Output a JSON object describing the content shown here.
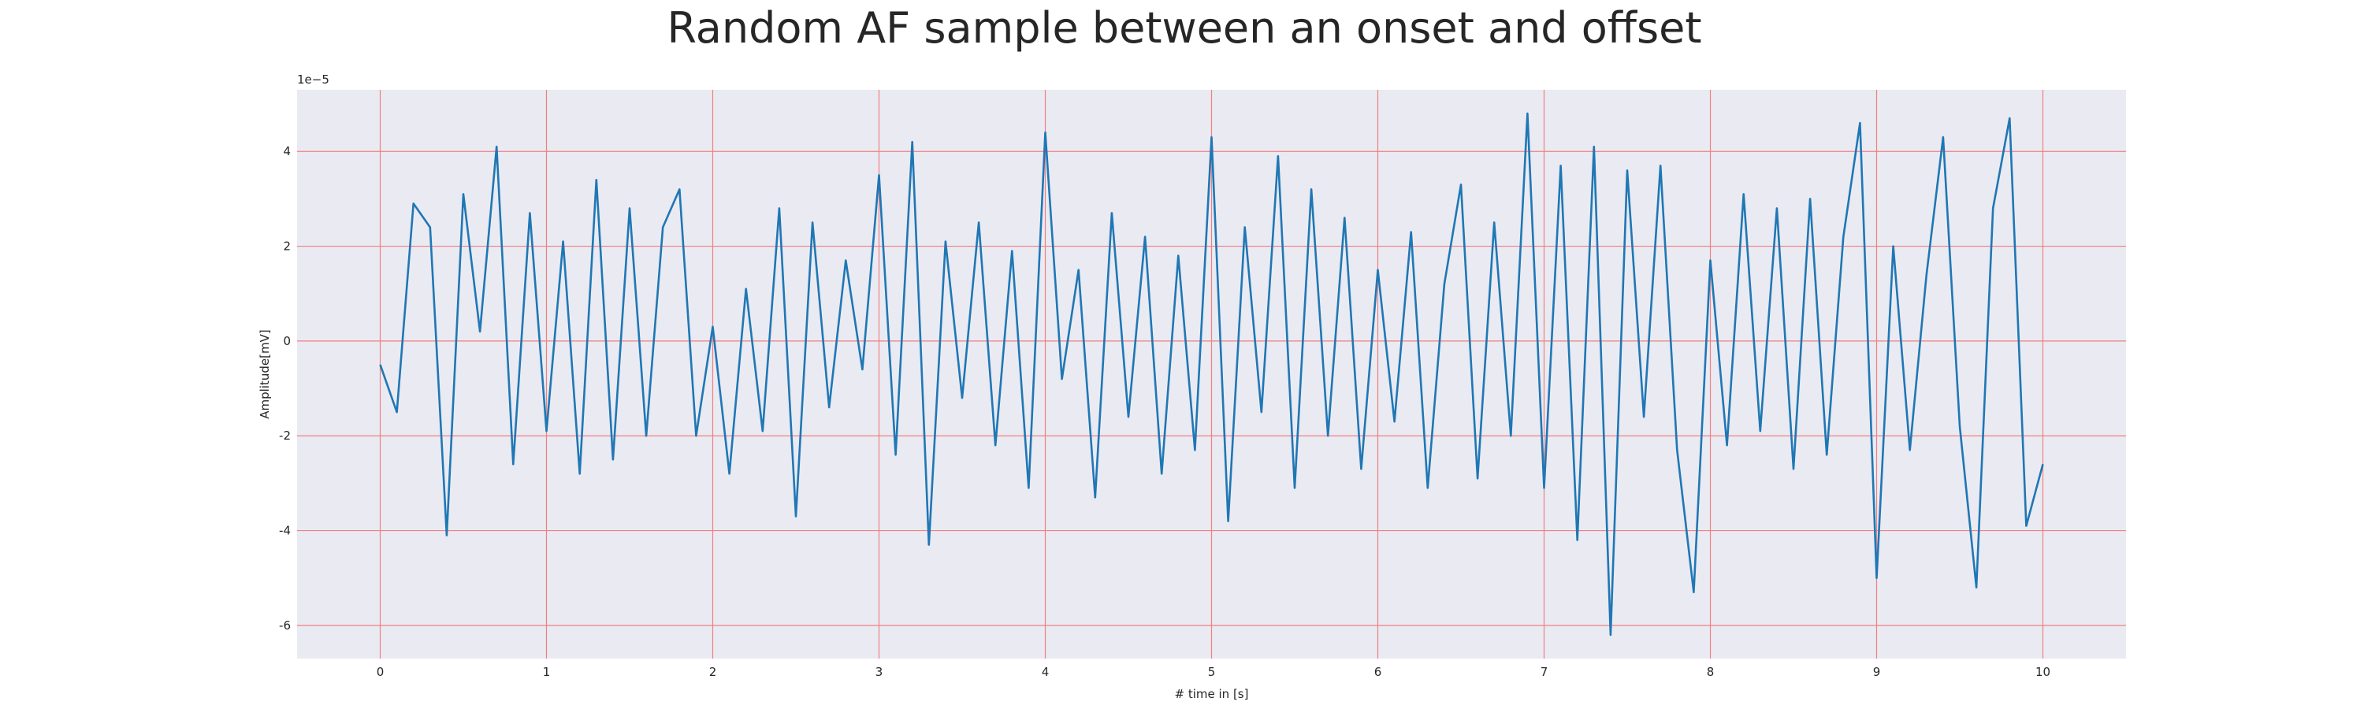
{
  "chart_data": {
    "type": "line",
    "title": "Random AF sample between an onset and offset",
    "xlabel": "# time in [s]",
    "ylabel": "Amplitude[mV]",
    "y_offset_label": "1e−5",
    "x": [
      0,
      0.1,
      0.2,
      0.3,
      0.4,
      0.5,
      0.6,
      0.7,
      0.8,
      0.9,
      1,
      1.1,
      1.2,
      1.3,
      1.4,
      1.5,
      1.6,
      1.7,
      1.8,
      1.9,
      2,
      2.1,
      2.2,
      2.3,
      2.4,
      2.5,
      2.6,
      2.7,
      2.8,
      2.9,
      3,
      3.1,
      3.2,
      3.3,
      3.4,
      3.5,
      3.6,
      3.7,
      3.8,
      3.9,
      4,
      4.1,
      4.2,
      4.3,
      4.4,
      4.5,
      4.6,
      4.7,
      4.8,
      4.9,
      5,
      5.1,
      5.2,
      5.3,
      5.4,
      5.5,
      5.6,
      5.7,
      5.8,
      5.9,
      6,
      6.1,
      6.2,
      6.3,
      6.4,
      6.5,
      6.6,
      6.7,
      6.8,
      6.9,
      7,
      7.1,
      7.2,
      7.3,
      7.4,
      7.5,
      7.6,
      7.7,
      7.8,
      7.9,
      8,
      8.1,
      8.2,
      8.3,
      8.4,
      8.5,
      8.6,
      8.7,
      8.8,
      8.9,
      9,
      9.1,
      9.2,
      9.3,
      9.4,
      9.5,
      9.6,
      9.7,
      9.8,
      9.9,
      10
    ],
    "series": [
      {
        "color": "#1f77b4",
        "values": [
          -0.5,
          -1.5,
          2.9,
          2.4,
          -4.1,
          3.1,
          0.2,
          4.1,
          -2.6,
          2.7,
          -1.9,
          2.1,
          -2.8,
          3.4,
          -2.5,
          2.8,
          -2.0,
          2.4,
          3.2,
          -2.0,
          0.3,
          -2.8,
          1.1,
          -1.9,
          2.8,
          -3.7,
          2.5,
          -1.4,
          1.7,
          -0.6,
          3.5,
          -2.4,
          4.2,
          -4.3,
          2.1,
          -1.2,
          2.5,
          -2.2,
          1.9,
          -3.1,
          4.4,
          -0.8,
          1.5,
          -3.3,
          2.7,
          -1.6,
          2.2,
          -2.8,
          1.8,
          -2.3,
          4.3,
          -3.8,
          2.4,
          -1.5,
          3.9,
          -3.1,
          3.2,
          -2.0,
          2.6,
          -2.7,
          1.5,
          -1.7,
          2.3,
          -3.1,
          1.2,
          3.3,
          -2.9,
          2.5,
          -2.0,
          4.8,
          -3.1,
          3.7,
          -4.2,
          4.1,
          -6.2,
          3.6,
          -1.6,
          3.7,
          -2.3,
          -5.3,
          1.7,
          -2.2,
          3.1,
          -1.9,
          2.8,
          -2.7,
          3.0,
          -2.4,
          2.2,
          4.6,
          -5.0,
          2.0,
          -2.3,
          1.4,
          4.3,
          -1.8,
          -5.2,
          2.8,
          4.7,
          -3.9,
          -2.6
        ]
      }
    ],
    "xlim": [
      -0.5,
      10.5
    ],
    "ylim": [
      -6.7,
      5.3
    ],
    "xticks": [
      0,
      1,
      2,
      3,
      4,
      5,
      6,
      7,
      8,
      9,
      10
    ],
    "yticks": [
      -6,
      -4,
      -2,
      0,
      2,
      4
    ],
    "grid": true,
    "grid_color": "#f08080",
    "background": "#eaeaf2"
  }
}
